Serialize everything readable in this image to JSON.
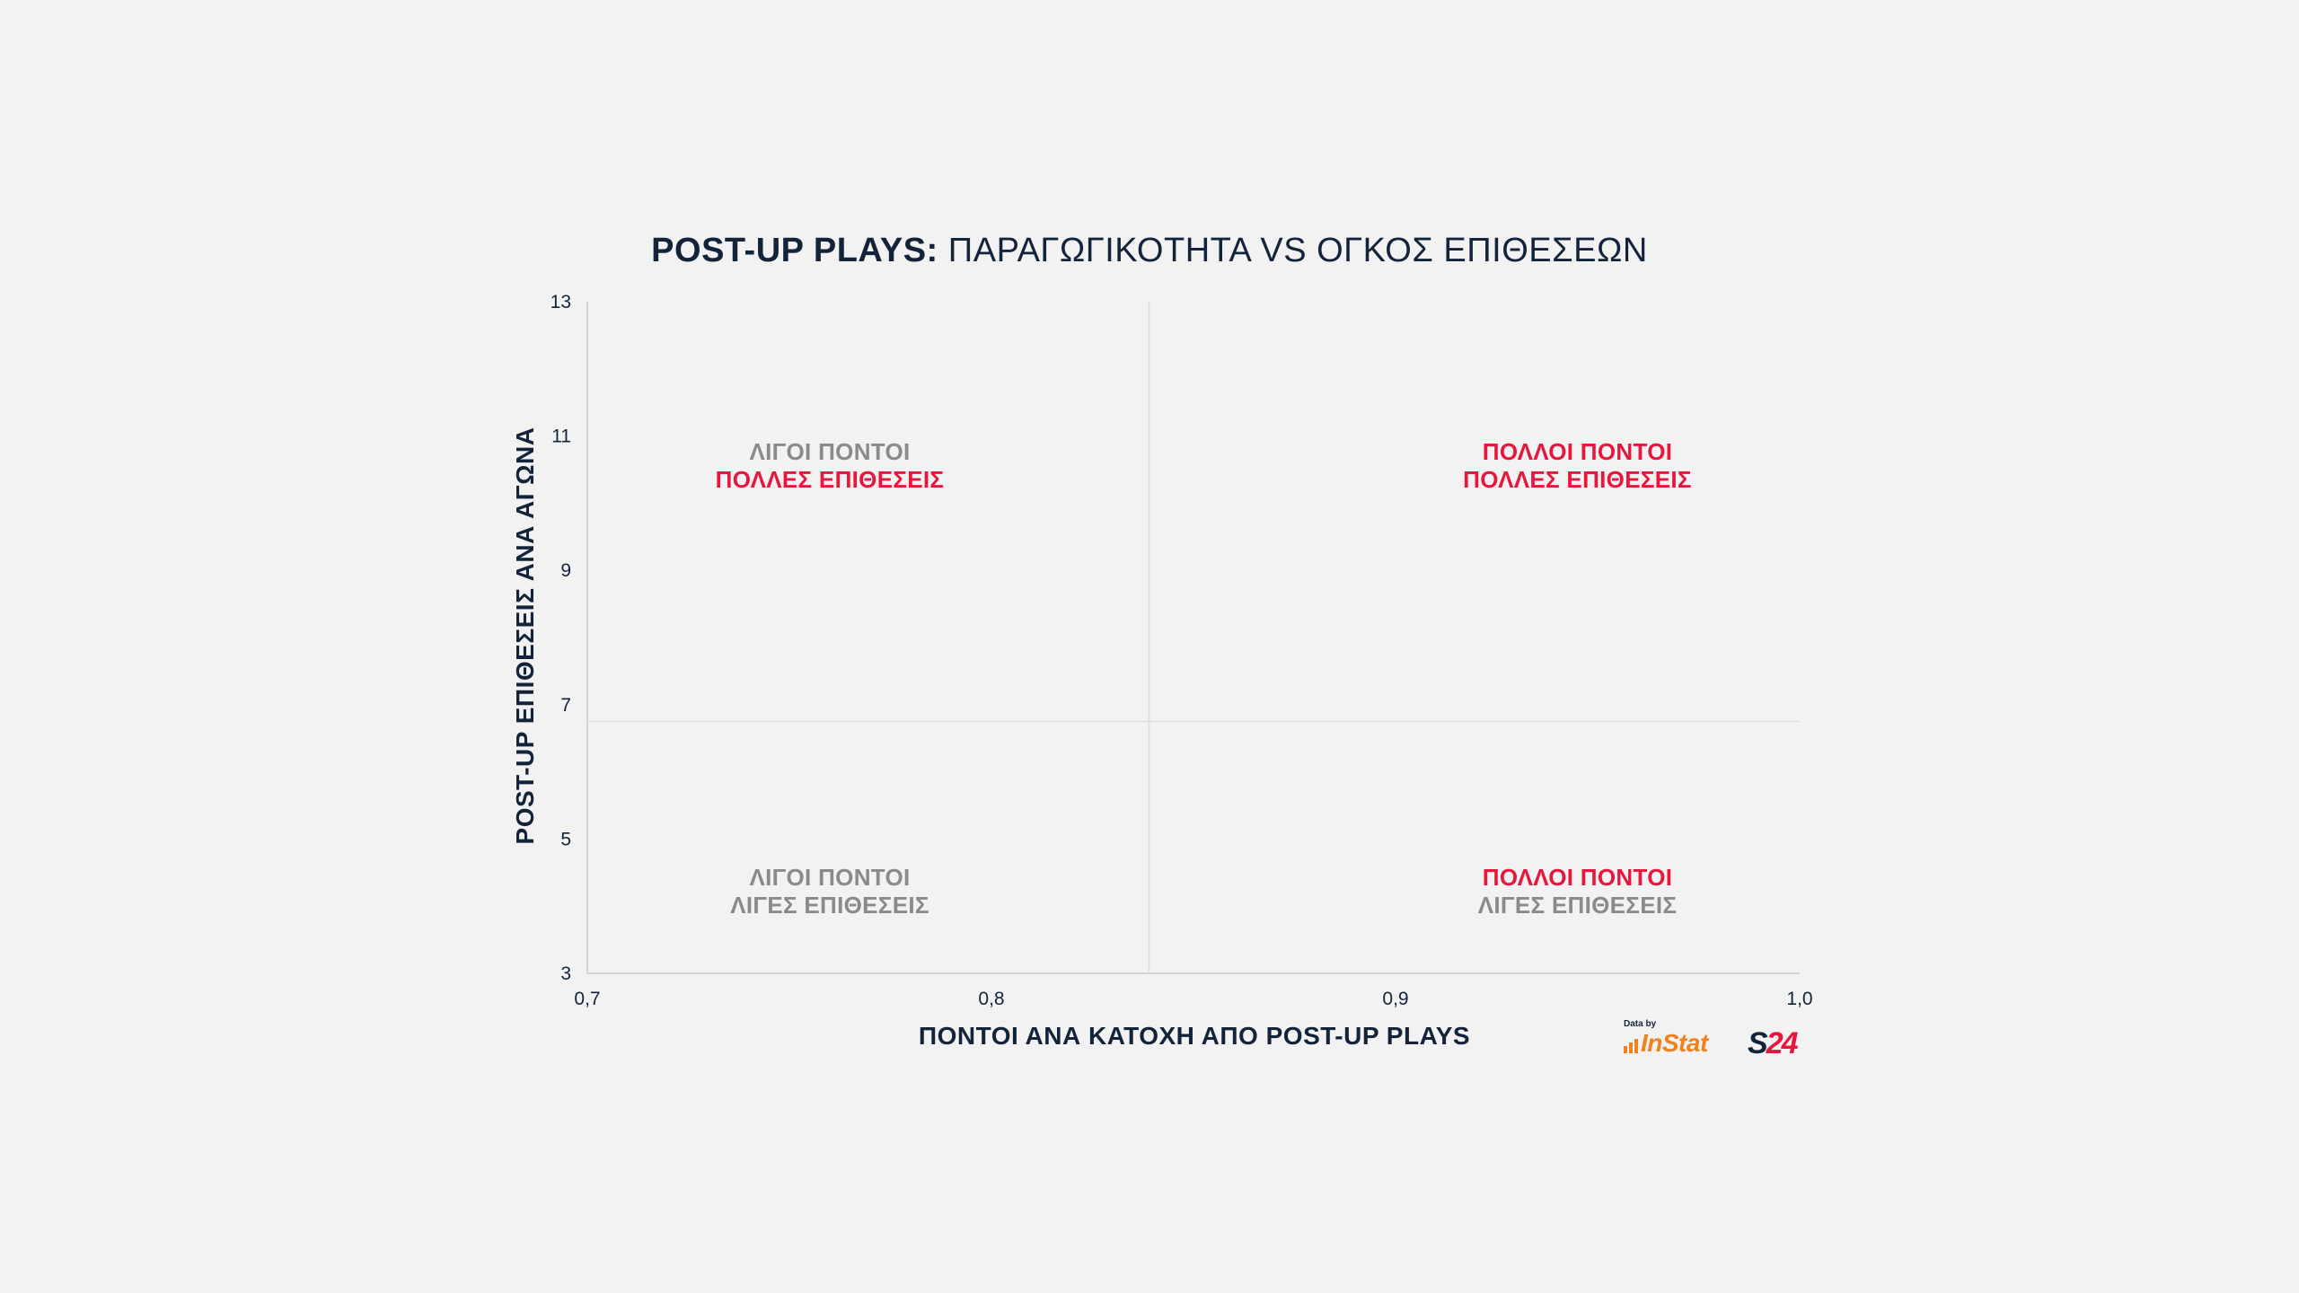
{
  "chart_data": {
    "type": "scatter",
    "title_bold": "POST-UP PLAYS:",
    "title_regular": " ΠΑΡΑΓΩΓΙΚΟΤΗΤΑ VS ΟΓΚΟΣ ΕΠΙΘΕΣΕΩΝ",
    "xlabel": "ΠΟΝΤΟΙ ΑΝΑ ΚΑΤΟΧΗ ΑΠΟ POST-UP PLAYS",
    "ylabel": "POST-UP ΕΠΙΘΕΣΕΙΣ ΑΝΑ ΑΓΩΝΑ",
    "xlim": [
      0.7,
      1.0
    ],
    "ylim": [
      3,
      13
    ],
    "x_ticks": [
      {
        "value": 0.7,
        "label": "0,7"
      },
      {
        "value": 0.8,
        "label": "0,8"
      },
      {
        "value": 0.9,
        "label": "0,9"
      },
      {
        "value": 1.0,
        "label": "1,0"
      }
    ],
    "y_ticks": [
      {
        "value": 3,
        "label": "3"
      },
      {
        "value": 5,
        "label": "5"
      },
      {
        "value": 7,
        "label": "7"
      },
      {
        "value": 9,
        "label": "9"
      },
      {
        "value": 11,
        "label": "11"
      },
      {
        "value": 13,
        "label": "13"
      }
    ],
    "reference_lines": {
      "x": 0.839,
      "y": 6.75
    },
    "grid": false,
    "series": [],
    "quadrant_labels": [
      {
        "position": "top-left",
        "x": 0.76,
        "y": 10.55,
        "lines": [
          {
            "text": "ΛΙΓΟΙ ΠΟΝΤΟΙ",
            "color": "#8a8a8a"
          },
          {
            "text": "ΠΟΛΛΕΣ ΕΠΙΘΕΣΕΙΣ",
            "color": "#e8163c"
          }
        ]
      },
      {
        "position": "top-right",
        "x": 0.945,
        "y": 10.55,
        "lines": [
          {
            "text": "ΠΟΛΛΟΙ ΠΟΝΤΟΙ",
            "color": "#e8163c"
          },
          {
            "text": "ΠΟΛΛΕΣ ΕΠΙΘΕΣΕΙΣ",
            "color": "#e8163c"
          }
        ]
      },
      {
        "position": "bottom-left",
        "x": 0.76,
        "y": 4.22,
        "lines": [
          {
            "text": "ΛΙΓΟΙ ΠΟΝΤΟΙ",
            "color": "#8a8a8a"
          },
          {
            "text": "ΛΙΓΕΣ ΕΠΙΘΕΣΕΙΣ",
            "color": "#8a8a8a"
          }
        ]
      },
      {
        "position": "bottom-right",
        "x": 0.945,
        "y": 4.22,
        "lines": [
          {
            "text": "ΠΟΛΛΟΙ ΠΟΝΤΟΙ",
            "color": "#e8163c"
          },
          {
            "text": "ΛΙΓΕΣ ΕΠΙΘΕΣΕΙΣ",
            "color": "#8a8a8a"
          }
        ]
      }
    ]
  },
  "credit": {
    "data_by": "Data by",
    "instat": "InStat",
    "s24_s": "S",
    "s24_num": "24"
  },
  "colors": {
    "background": "#f2f2f2",
    "text_dark": "#13233a",
    "accent_red": "#e8163c",
    "muted_gray": "#8a8a8a",
    "axis_line": "#c9c9c9",
    "instat_orange": "#f0821e"
  }
}
